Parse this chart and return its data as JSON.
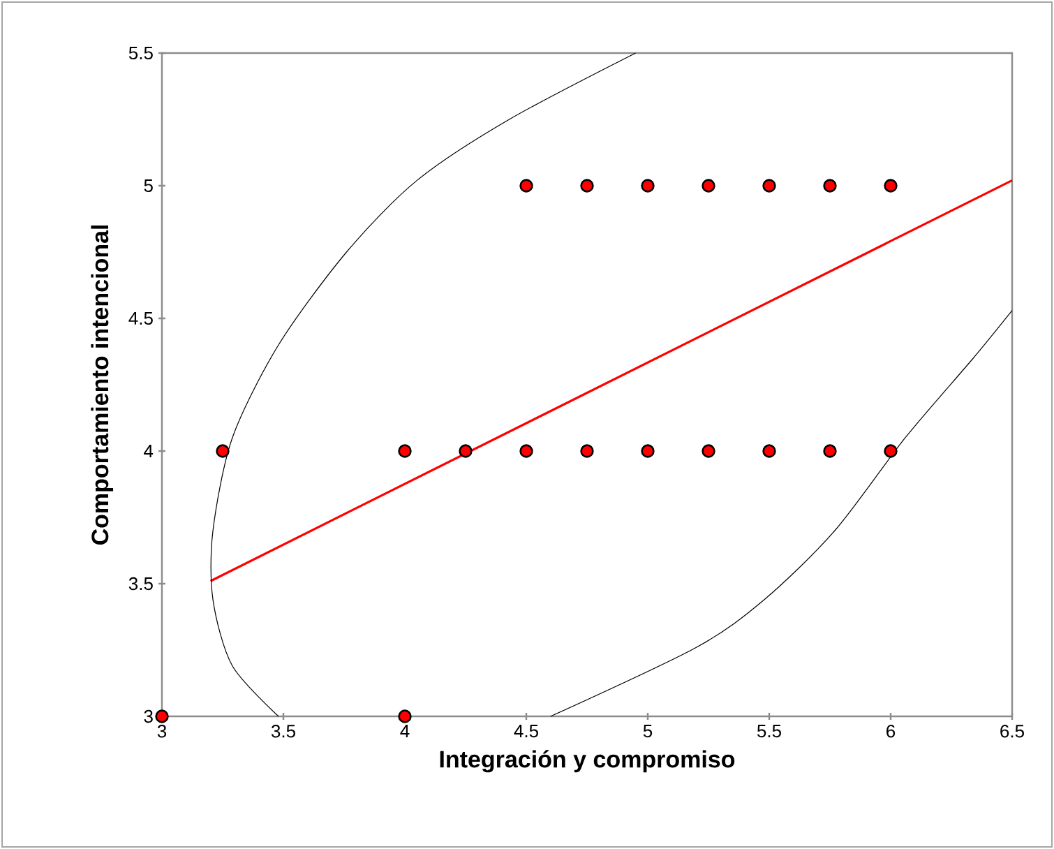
{
  "chart_data": {
    "type": "scatter",
    "xlabel": "Integración y compromiso",
    "ylabel": "Comportamiento intencional",
    "xlim": [
      3,
      6.5
    ],
    "ylim": [
      3,
      5.5
    ],
    "xticks": [
      3,
      3.5,
      4,
      4.5,
      5,
      5.5,
      6,
      6.5
    ],
    "yticks": [
      3,
      3.5,
      4,
      4.5,
      5,
      5.5
    ],
    "grid": false,
    "series": [
      {
        "marker": "circle",
        "color": "#ff0000",
        "x": [
          3,
          3.25,
          4,
          4,
          4.25,
          4.5,
          4.75,
          5,
          5.25,
          5.5,
          5.75,
          6,
          4.5,
          4.75,
          5,
          5.25,
          5.5,
          5.75,
          6
        ],
        "values": [
          3,
          4,
          4,
          3,
          4,
          4,
          4,
          4,
          4,
          4,
          4,
          4,
          5,
          5,
          5,
          5,
          5,
          5,
          5
        ]
      },
      {
        "type": "line",
        "marker": "none",
        "color": "#ff0000",
        "x": [
          3.2,
          6.5
        ],
        "values": [
          3.51,
          5.02
        ]
      },
      {
        "type": "line",
        "marker": "none",
        "color": "#000000",
        "x": [
          3.48,
          3.29,
          3.21,
          3.21,
          3.29,
          3.48,
          3.76,
          4.05,
          4.43,
          4.95
        ],
        "values": [
          3.0,
          3.19,
          3.44,
          3.7,
          4.05,
          4.4,
          4.75,
          5.02,
          5.25,
          5.5
        ]
      },
      {
        "type": "line",
        "marker": "none",
        "color": "#000000",
        "x": [
          4.6,
          5.2,
          5.48,
          5.77,
          6.06,
          6.34,
          6.5
        ],
        "values": [
          3.0,
          3.26,
          3.44,
          3.7,
          4.05,
          4.35,
          4.53
        ]
      }
    ]
  }
}
